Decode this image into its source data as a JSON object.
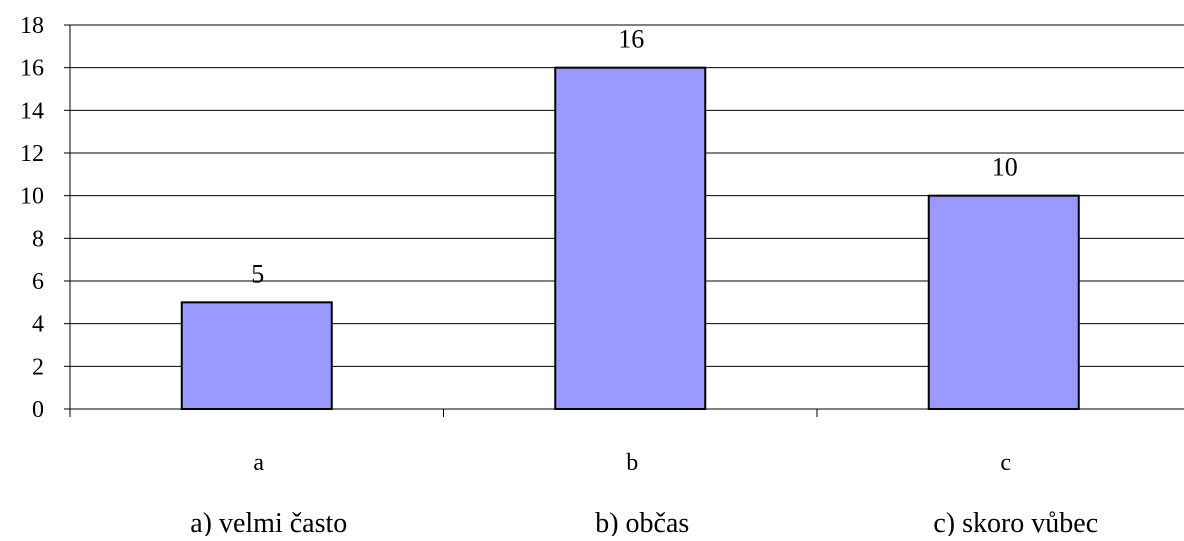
{
  "chart_data": {
    "type": "bar",
    "categories": [
      "a",
      "b",
      "c"
    ],
    "values": [
      5,
      16,
      10
    ],
    "data_labels": [
      "5",
      "16",
      "10"
    ],
    "ylim": [
      0,
      18
    ],
    "y_ticks": [
      0,
      2,
      4,
      6,
      8,
      10,
      12,
      14,
      16,
      18
    ],
    "y_tick_labels": [
      "0",
      "2",
      "4",
      "6",
      "8",
      "10",
      "12",
      "14",
      "16",
      "18"
    ],
    "grid": true,
    "bar_color": "#9999ff",
    "bar_edge_color": "#000000",
    "category_descriptions": [
      "a) velmi často",
      "b) občas",
      "c) skoro vůbec"
    ]
  }
}
